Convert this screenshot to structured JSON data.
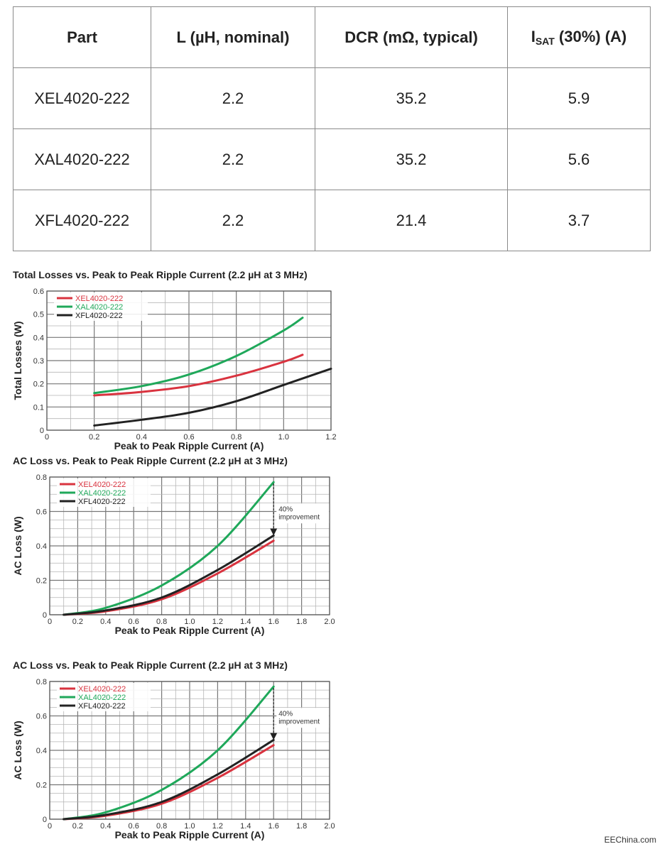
{
  "table": {
    "headers": [
      "Part",
      "L (µH, nominal)",
      "DCR (mΩ, typical)"
    ],
    "isat_header": {
      "main": "I",
      "sub": "SAT",
      "rest": " (30%) (A)"
    },
    "rows": [
      [
        "XEL4020-222",
        "2.2",
        "35.2",
        "5.9"
      ],
      [
        "XAL4020-222",
        "2.2",
        "35.2",
        "5.6"
      ],
      [
        "XFL4020-222",
        "2.2",
        "21.4",
        "3.7"
      ]
    ]
  },
  "colors": {
    "XEL": "#d9333f",
    "XAL": "#1fa85a",
    "XFL": "#222222",
    "grid": "#9a9a9a"
  },
  "chart_data": [
    {
      "type": "line",
      "title": "Total Losses vs. Peak to Peak Ripple Current (2.2 µH at 3 MHz)",
      "xlabel": "Peak to Peak Ripple Current (A)",
      "ylabel": "Total Losses (W)",
      "xlim": [
        0,
        1.2
      ],
      "ylim": [
        0,
        0.6
      ],
      "xticks": [
        "0",
        "0.2",
        "0.4",
        "0.6",
        "0.8",
        "1.0",
        "1.2"
      ],
      "yticks": [
        "0",
        "0.1",
        "0.2",
        "0.3",
        "0.4",
        "0.5",
        "0.6"
      ],
      "series": [
        {
          "name": "XEL4020-222",
          "color": "#d9333f",
          "x": [
            0.2,
            0.4,
            0.6,
            0.8,
            1.0,
            1.08
          ],
          "y": [
            0.15,
            0.165,
            0.19,
            0.235,
            0.295,
            0.325
          ]
        },
        {
          "name": "XAL4020-222",
          "color": "#1fa85a",
          "x": [
            0.2,
            0.4,
            0.6,
            0.8,
            1.0,
            1.08
          ],
          "y": [
            0.16,
            0.19,
            0.24,
            0.32,
            0.43,
            0.485
          ]
        },
        {
          "name": "XFL4020-222",
          "color": "#222222",
          "x": [
            0.2,
            0.4,
            0.6,
            0.8,
            1.0,
            1.2
          ],
          "y": [
            0.02,
            0.045,
            0.075,
            0.125,
            0.195,
            0.265
          ]
        }
      ]
    },
    {
      "type": "line",
      "title": "AC Loss vs. Peak to Peak Ripple Current (2.2 µH at 3 MHz)",
      "xlabel": "Peak to Peak Ripple Current (A)",
      "ylabel": "AC Loss (W)",
      "xlim": [
        0,
        2.0
      ],
      "ylim": [
        0,
        0.8
      ],
      "xticks": [
        "0",
        "0.2",
        "0.4",
        "0.6",
        "0.8",
        "1.0",
        "1.2",
        "1.4",
        "1.6",
        "1.8",
        "2.0"
      ],
      "yticks": [
        "0",
        "0.2",
        "0.4",
        "0.6",
        "0.8"
      ],
      "annotation": [
        "40%",
        "improvement"
      ],
      "series": [
        {
          "name": "XEL4020-222",
          "color": "#d9333f",
          "x": [
            0.1,
            0.4,
            0.8,
            1.2,
            1.6
          ],
          "y": [
            0.0,
            0.02,
            0.09,
            0.24,
            0.43
          ]
        },
        {
          "name": "XAL4020-222",
          "color": "#1fa85a",
          "x": [
            0.1,
            0.4,
            0.8,
            1.2,
            1.6
          ],
          "y": [
            0.0,
            0.04,
            0.17,
            0.4,
            0.77
          ]
        },
        {
          "name": "XFL4020-222",
          "color": "#222222",
          "x": [
            0.1,
            0.4,
            0.8,
            1.2,
            1.6
          ],
          "y": [
            0.0,
            0.025,
            0.1,
            0.26,
            0.46
          ]
        }
      ]
    },
    {
      "type": "line",
      "title": "AC Loss vs. Peak to Peak Ripple Current (2.2 µH at 3 MHz)",
      "xlabel": "Peak to Peak Ripple Current (A)",
      "ylabel": "AC Loss (W)",
      "xlim": [
        0,
        2.0
      ],
      "ylim": [
        0,
        0.8
      ],
      "xticks": [
        "0",
        "0.2",
        "0.4",
        "0.6",
        "0.8",
        "1.0",
        "1.2",
        "1.4",
        "1.6",
        "1.8",
        "2.0"
      ],
      "yticks": [
        "0",
        "0.2",
        "0.4",
        "0.6",
        "0.8"
      ],
      "annotation": [
        "40%",
        "improvement"
      ],
      "series": [
        {
          "name": "XEL4020-222",
          "color": "#d9333f",
          "x": [
            0.1,
            0.4,
            0.8,
            1.2,
            1.6
          ],
          "y": [
            0.0,
            0.02,
            0.09,
            0.24,
            0.43
          ]
        },
        {
          "name": "XAL4020-222",
          "color": "#1fa85a",
          "x": [
            0.1,
            0.4,
            0.8,
            1.2,
            1.6
          ],
          "y": [
            0.0,
            0.04,
            0.17,
            0.4,
            0.77
          ]
        },
        {
          "name": "XFL4020-222",
          "color": "#222222",
          "x": [
            0.1,
            0.4,
            0.8,
            1.2,
            1.6
          ],
          "y": [
            0.0,
            0.025,
            0.1,
            0.26,
            0.46
          ]
        }
      ]
    }
  ],
  "watermark": "EEChina.com"
}
